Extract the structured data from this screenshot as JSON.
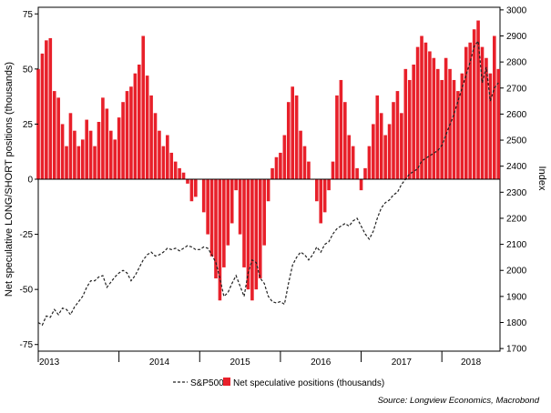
{
  "chart_data": {
    "type": "bar+line",
    "title": "",
    "left_axis": {
      "label": "Net speculative LONG/SHORT positions (thousands)",
      "range": [
        -78,
        78
      ],
      "ticks": [
        75,
        50,
        25,
        0,
        -25,
        -50,
        -75
      ],
      "tick_labels": [
        "75",
        "50",
        "25",
        "0",
        "-25",
        "-50",
        "-75"
      ]
    },
    "right_axis": {
      "label": "Index",
      "range": [
        1690,
        3010
      ],
      "ticks": [
        3000,
        2900,
        2800,
        2700,
        2600,
        2500,
        2400,
        2300,
        2200,
        2100,
        2000,
        1900,
        1800,
        1700
      ],
      "tick_labels": [
        "3000",
        "2900",
        "2800",
        "2700",
        "2600",
        "2500",
        "2400",
        "2300",
        "2200",
        "2100",
        "2000",
        "1900",
        "1800",
        "1700"
      ]
    },
    "x_axis": {
      "range": [
        2013.0,
        2018.72
      ],
      "years": [
        2013,
        2014,
        2015,
        2016,
        2017,
        2018
      ],
      "year_labels": [
        "2013",
        "2014",
        "2015",
        "2016",
        "2017",
        "2018"
      ]
    },
    "grid": false,
    "legend_position": "bottom",
    "series": [
      {
        "name": "S&P500",
        "type": "line",
        "style": "dashed",
        "color": "#222222",
        "axis": "right",
        "points": [
          [
            2013.0,
            1800
          ],
          [
            2013.05,
            1790
          ],
          [
            2013.1,
            1825
          ],
          [
            2013.15,
            1820
          ],
          [
            2013.2,
            1850
          ],
          [
            2013.25,
            1830
          ],
          [
            2013.3,
            1855
          ],
          [
            2013.35,
            1850
          ],
          [
            2013.4,
            1830
          ],
          [
            2013.45,
            1860
          ],
          [
            2013.5,
            1880
          ],
          [
            2013.55,
            1900
          ],
          [
            2013.6,
            1935
          ],
          [
            2013.65,
            1960
          ],
          [
            2013.7,
            1960
          ],
          [
            2013.75,
            1975
          ],
          [
            2013.8,
            1980
          ],
          [
            2013.85,
            1935
          ],
          [
            2013.9,
            1955
          ],
          [
            2013.95,
            1975
          ],
          [
            2014.0,
            1990
          ],
          [
            2014.05,
            2000
          ],
          [
            2014.1,
            1990
          ],
          [
            2014.15,
            1960
          ],
          [
            2014.2,
            1980
          ],
          [
            2014.25,
            2010
          ],
          [
            2014.3,
            2040
          ],
          [
            2014.35,
            2060
          ],
          [
            2014.4,
            2070
          ],
          [
            2014.45,
            2055
          ],
          [
            2014.5,
            2060
          ],
          [
            2014.55,
            2070
          ],
          [
            2014.6,
            2085
          ],
          [
            2014.65,
            2080
          ],
          [
            2014.7,
            2085
          ],
          [
            2014.75,
            2075
          ],
          [
            2014.8,
            2085
          ],
          [
            2014.85,
            2095
          ],
          [
            2014.9,
            2090
          ],
          [
            2014.95,
            2080
          ],
          [
            2015.0,
            2080
          ],
          [
            2015.05,
            2090
          ],
          [
            2015.1,
            2085
          ],
          [
            2015.15,
            2060
          ],
          [
            2015.2,
            2030
          ],
          [
            2015.25,
            1970
          ],
          [
            2015.3,
            1900
          ],
          [
            2015.35,
            1915
          ],
          [
            2015.4,
            1950
          ],
          [
            2015.45,
            1980
          ],
          [
            2015.5,
            1940
          ],
          [
            2015.55,
            1900
          ],
          [
            2015.6,
            1990
          ],
          [
            2015.65,
            2040
          ],
          [
            2015.7,
            2030
          ],
          [
            2015.75,
            1970
          ],
          [
            2015.8,
            1950
          ],
          [
            2015.85,
            1900
          ],
          [
            2015.9,
            1880
          ],
          [
            2015.95,
            1875
          ],
          [
            2016.0,
            1880
          ],
          [
            2016.05,
            1870
          ],
          [
            2016.1,
            1950
          ],
          [
            2016.15,
            2020
          ],
          [
            2016.2,
            2050
          ],
          [
            2016.25,
            2070
          ],
          [
            2016.3,
            2060
          ],
          [
            2016.35,
            2040
          ],
          [
            2016.4,
            2060
          ],
          [
            2016.45,
            2090
          ],
          [
            2016.5,
            2070
          ],
          [
            2016.55,
            2100
          ],
          [
            2016.6,
            2110
          ],
          [
            2016.65,
            2140
          ],
          [
            2016.7,
            2160
          ],
          [
            2016.75,
            2170
          ],
          [
            2016.8,
            2180
          ],
          [
            2016.85,
            2170
          ],
          [
            2016.9,
            2190
          ],
          [
            2016.95,
            2200
          ],
          [
            2017.0,
            2170
          ],
          [
            2017.05,
            2140
          ],
          [
            2017.1,
            2120
          ],
          [
            2017.15,
            2150
          ],
          [
            2017.2,
            2200
          ],
          [
            2017.25,
            2240
          ],
          [
            2017.3,
            2260
          ],
          [
            2017.35,
            2270
          ],
          [
            2017.4,
            2290
          ],
          [
            2017.45,
            2300
          ],
          [
            2017.5,
            2330
          ],
          [
            2017.55,
            2350
          ],
          [
            2017.6,
            2370
          ],
          [
            2017.65,
            2380
          ],
          [
            2017.7,
            2390
          ],
          [
            2017.75,
            2420
          ],
          [
            2017.8,
            2430
          ],
          [
            2017.85,
            2440
          ],
          [
            2017.9,
            2450
          ],
          [
            2017.95,
            2460
          ],
          [
            2018.0,
            2480
          ],
          [
            2018.05,
            2520
          ],
          [
            2018.1,
            2560
          ],
          [
            2018.15,
            2600
          ],
          [
            2018.2,
            2650
          ],
          [
            2018.25,
            2700
          ],
          [
            2018.3,
            2750
          ],
          [
            2018.35,
            2800
          ],
          [
            2018.4,
            2860
          ],
          [
            2018.45,
            2880
          ],
          [
            2018.5,
            2720
          ],
          [
            2018.55,
            2780
          ],
          [
            2018.6,
            2650
          ],
          [
            2018.65,
            2700
          ],
          [
            2018.7,
            2720
          ]
        ]
      },
      {
        "name": "Net speculative positions (thousands)",
        "type": "bar",
        "color": "#e8202a",
        "axis": "left",
        "points": [
          [
            2013.0,
            50
          ],
          [
            2013.05,
            57
          ],
          [
            2013.1,
            63
          ],
          [
            2013.15,
            64
          ],
          [
            2013.2,
            40
          ],
          [
            2013.25,
            37
          ],
          [
            2013.3,
            25
          ],
          [
            2013.35,
            15
          ],
          [
            2013.4,
            30
          ],
          [
            2013.45,
            22
          ],
          [
            2013.5,
            15
          ],
          [
            2013.55,
            18
          ],
          [
            2013.6,
            27
          ],
          [
            2013.65,
            22
          ],
          [
            2013.7,
            15
          ],
          [
            2013.75,
            26
          ],
          [
            2013.8,
            37
          ],
          [
            2013.85,
            32
          ],
          [
            2013.9,
            22
          ],
          [
            2013.95,
            18
          ],
          [
            2014.0,
            28
          ],
          [
            2014.05,
            35
          ],
          [
            2014.1,
            40
          ],
          [
            2014.15,
            42
          ],
          [
            2014.2,
            48
          ],
          [
            2014.25,
            52
          ],
          [
            2014.3,
            65
          ],
          [
            2014.35,
            47
          ],
          [
            2014.4,
            38
          ],
          [
            2014.45,
            30
          ],
          [
            2014.5,
            22
          ],
          [
            2014.55,
            15
          ],
          [
            2014.6,
            20
          ],
          [
            2014.65,
            12
          ],
          [
            2014.7,
            8
          ],
          [
            2014.75,
            5
          ],
          [
            2014.8,
            3
          ],
          [
            2014.85,
            -2
          ],
          [
            2014.9,
            -10
          ],
          [
            2014.95,
            -8
          ],
          [
            2015.0,
            0
          ],
          [
            2015.05,
            -15
          ],
          [
            2015.1,
            -25
          ],
          [
            2015.15,
            -35
          ],
          [
            2015.2,
            -45
          ],
          [
            2015.25,
            -55
          ],
          [
            2015.3,
            -40
          ],
          [
            2015.35,
            -30
          ],
          [
            2015.4,
            -20
          ],
          [
            2015.45,
            -5
          ],
          [
            2015.5,
            -25
          ],
          [
            2015.55,
            -40
          ],
          [
            2015.6,
            -50
          ],
          [
            2015.65,
            -55
          ],
          [
            2015.7,
            -50
          ],
          [
            2015.75,
            -45
          ],
          [
            2015.8,
            -30
          ],
          [
            2015.85,
            -10
          ],
          [
            2015.9,
            5
          ],
          [
            2015.95,
            10
          ],
          [
            2016.0,
            12
          ],
          [
            2016.05,
            20
          ],
          [
            2016.1,
            35
          ],
          [
            2016.15,
            42
          ],
          [
            2016.2,
            38
          ],
          [
            2016.25,
            22
          ],
          [
            2016.3,
            15
          ],
          [
            2016.35,
            8
          ],
          [
            2016.4,
            0
          ],
          [
            2016.45,
            -10
          ],
          [
            2016.5,
            -20
          ],
          [
            2016.55,
            -15
          ],
          [
            2016.6,
            -5
          ],
          [
            2016.65,
            8
          ],
          [
            2016.7,
            38
          ],
          [
            2016.75,
            45
          ],
          [
            2016.8,
            35
          ],
          [
            2016.85,
            20
          ],
          [
            2016.9,
            15
          ],
          [
            2016.95,
            5
          ],
          [
            2017.0,
            -5
          ],
          [
            2017.05,
            5
          ],
          [
            2017.1,
            15
          ],
          [
            2017.15,
            25
          ],
          [
            2017.2,
            38
          ],
          [
            2017.25,
            30
          ],
          [
            2017.3,
            20
          ],
          [
            2017.35,
            25
          ],
          [
            2017.4,
            35
          ],
          [
            2017.45,
            40
          ],
          [
            2017.5,
            30
          ],
          [
            2017.55,
            50
          ],
          [
            2017.6,
            45
          ],
          [
            2017.65,
            52
          ],
          [
            2017.7,
            60
          ],
          [
            2017.75,
            65
          ],
          [
            2017.8,
            62
          ],
          [
            2017.85,
            58
          ],
          [
            2017.9,
            55
          ],
          [
            2017.95,
            50
          ],
          [
            2018.0,
            45
          ],
          [
            2018.05,
            55
          ],
          [
            2018.1,
            50
          ],
          [
            2018.15,
            45
          ],
          [
            2018.2,
            40
          ],
          [
            2018.25,
            48
          ],
          [
            2018.3,
            60
          ],
          [
            2018.35,
            62
          ],
          [
            2018.4,
            68
          ],
          [
            2018.45,
            72
          ],
          [
            2018.5,
            60
          ],
          [
            2018.55,
            55
          ],
          [
            2018.6,
            48
          ],
          [
            2018.65,
            65
          ],
          [
            2018.7,
            50
          ]
        ]
      }
    ],
    "legend": [
      {
        "name": "S&P500",
        "style": "dashed",
        "color": "#222222"
      },
      {
        "name": "Net speculative positions (thousands)",
        "style": "filled-square",
        "color": "#e8202a"
      }
    ],
    "source": "Source: Longview Economics, Macrobond"
  }
}
